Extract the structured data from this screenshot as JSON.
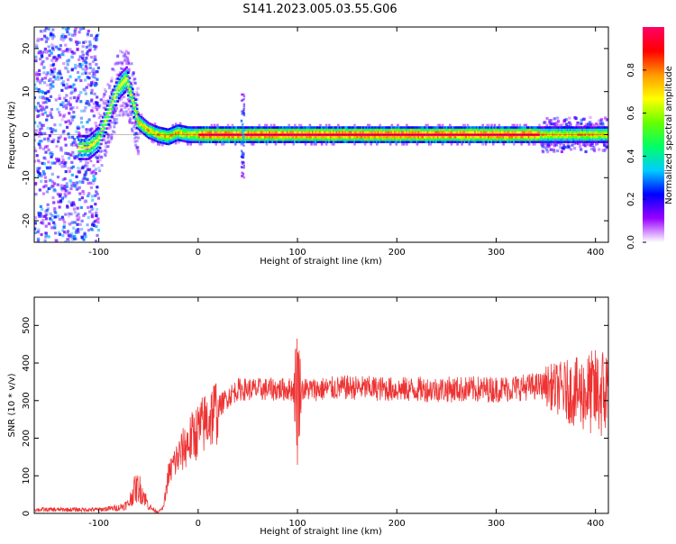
{
  "title": "S141.2023.005.03.55.G06",
  "chart_data": [
    {
      "type": "heatmap",
      "xlabel": "Height of straight line (km)",
      "ylabel": "Frequency (Hz)",
      "xlim": [
        -165,
        413
      ],
      "ylim": [
        -25,
        25
      ],
      "xticks": [
        -100,
        0,
        100,
        200,
        300,
        400
      ],
      "yticks": [
        -20,
        -10,
        0,
        10,
        20
      ],
      "colorbar": {
        "label": "Normalized spectral amplitude",
        "range": [
          0,
          1
        ],
        "ticks": [
          0.0,
          0.2,
          0.4,
          0.6,
          0.8
        ],
        "colors": [
          "#ffffff",
          "#9900ff",
          "#0000ff",
          "#00ccff",
          "#00ff66",
          "#66ff00",
          "#ffff00",
          "#ff9900",
          "#ff0000",
          "#ff0066"
        ]
      },
      "ridge": {
        "x": [
          -120,
          -110,
          -100,
          -90,
          -80,
          -72,
          -66,
          -60,
          -50,
          -40,
          -30,
          -20,
          -10,
          0,
          45,
          100,
          200,
          300,
          413
        ],
        "freq": [
          -3,
          -3,
          -1,
          5,
          11,
          13,
          8,
          3,
          1,
          0,
          -0.5,
          0.5,
          0,
          0,
          0,
          0,
          0,
          0,
          0
        ]
      },
      "burst_x": 45,
      "noise_x_ranges": [
        [
          -165,
          -100
        ],
        [
          345,
          413
        ]
      ]
    },
    {
      "type": "line",
      "xlabel": "Height of straight line (km)",
      "ylabel": "SNR (10 * v/v)",
      "xlim": [
        -165,
        413
      ],
      "ylim": [
        0,
        575
      ],
      "xticks": [
        -100,
        0,
        100,
        200,
        300,
        400
      ],
      "yticks": [
        0,
        100,
        200,
        300,
        400,
        500
      ],
      "series_color": "#ee3333",
      "series": [
        {
          "x": [
            -165,
            -100,
            -80,
            -70,
            -65,
            -60,
            -55,
            -50,
            -45,
            -40,
            -35,
            -30,
            -25,
            -20,
            -10,
            0,
            10,
            20,
            30,
            40,
            60,
            80,
            95,
            100,
            105,
            120,
            150,
            200,
            250,
            300,
            350,
            380,
            413
          ],
          "values": [
            10,
            10,
            15,
            25,
            60,
            70,
            50,
            20,
            10,
            5,
            15,
            100,
            130,
            150,
            190,
            220,
            250,
            280,
            310,
            330,
            330,
            330,
            330,
            330,
            330,
            330,
            335,
            330,
            330,
            330,
            340,
            320,
            320
          ]
        }
      ]
    }
  ]
}
